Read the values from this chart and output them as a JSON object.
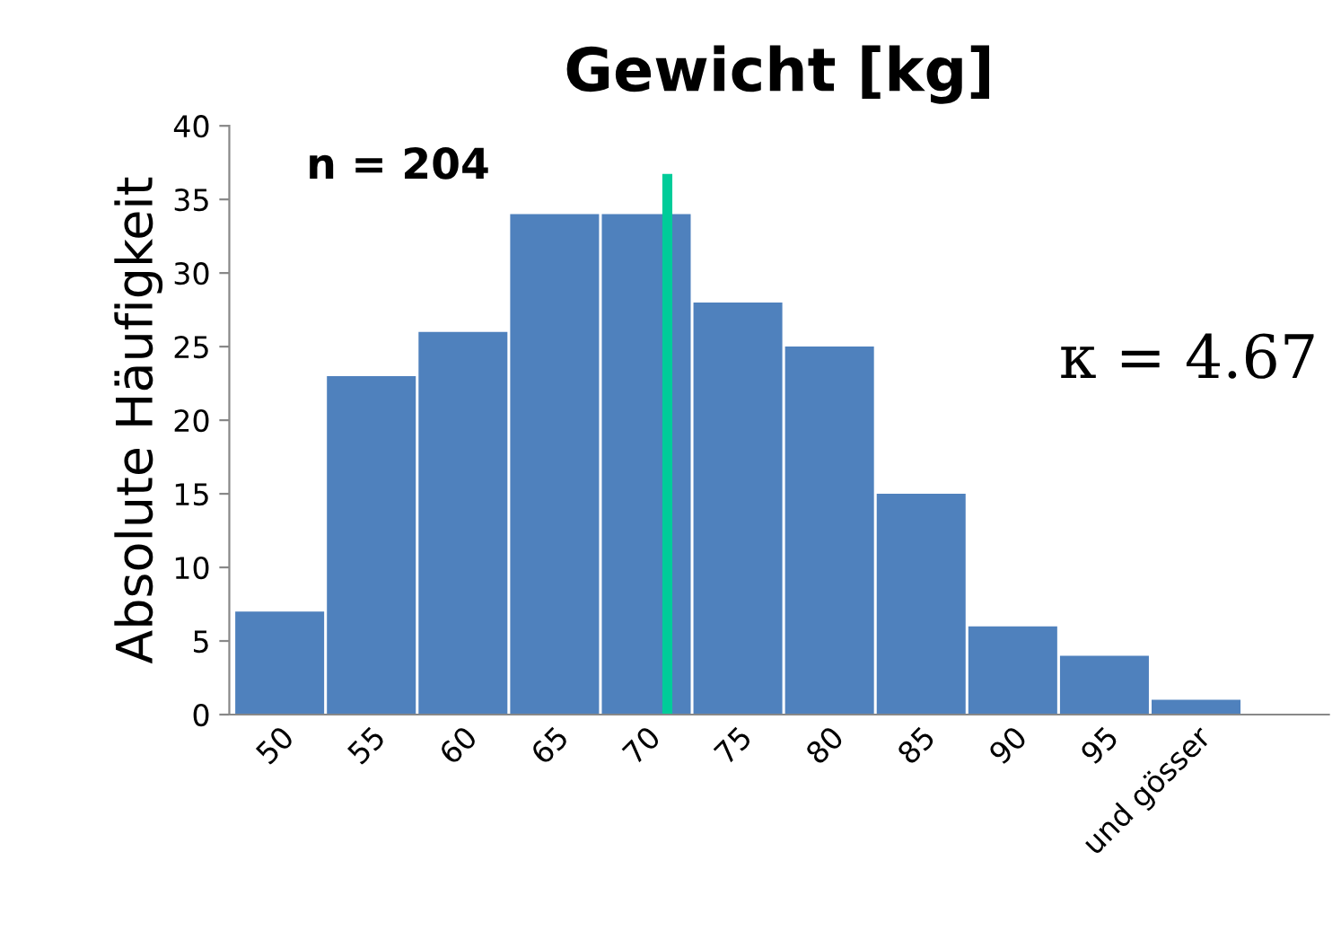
{
  "chart_data": {
    "type": "bar",
    "title": "Gewicht [kg]",
    "ylabel": "Absolute Häufigkeit",
    "categories": [
      "50",
      "55",
      "60",
      "65",
      "70",
      "75",
      "80",
      "85",
      "90",
      "95",
      "und gösser"
    ],
    "values": [
      7,
      23,
      26,
      34,
      34,
      28,
      25,
      15,
      6,
      4,
      1
    ],
    "color": "#4f81bd",
    "ylim": [
      0,
      40
    ],
    "yticks": [
      0,
      5,
      10,
      15,
      20,
      25,
      30,
      35,
      40
    ],
    "grid": false,
    "legend": false,
    "ref_lines": [
      {
        "axis": "x",
        "value": "70",
        "color": "#00cc99"
      }
    ],
    "annotations": [
      "n = 204",
      "κ = 4.67"
    ]
  }
}
